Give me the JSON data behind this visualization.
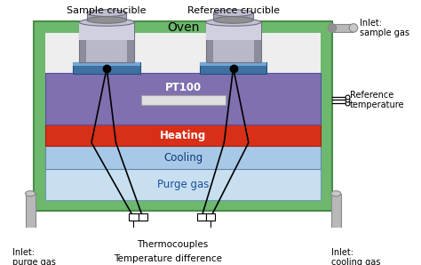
{
  "fig_width": 4.74,
  "fig_height": 2.98,
  "dpi": 100,
  "bg_color": "#ffffff",
  "oven_color": "#6db86d",
  "purge_gas_color": "#c8dff0",
  "cooling_color": "#a8c8e8",
  "heating_color": "#d83018",
  "pt100_color": "#8070b0",
  "sensor_color": "#e0e0e0",
  "crucible_base_color": "#4070a0",
  "crucible_highlight": "#70a8d8",
  "crucible_body_color": "#b0b0c0",
  "crucible_dark": "#808090",
  "pipe_color": "#b8b8b8",
  "pipe_dark": "#888888",
  "title_oven": "Oven",
  "label_sample": "Sample crucible",
  "label_reference": "Reference crucible",
  "label_pt100": "PT100",
  "label_heating": "Heating",
  "label_cooling": "Cooling",
  "label_purge": "Purge gas",
  "label_thermocouples": "Thermocouples",
  "label_temp_diff": "Temperature difference",
  "label_inlet_purge": "Inlet:\npurge gas",
  "label_inlet_sample": "Inlet:\nsample gas",
  "label_inlet_cooling": "Inlet:\ncooling gas",
  "label_ref_temp": "Reference\ntemperature"
}
